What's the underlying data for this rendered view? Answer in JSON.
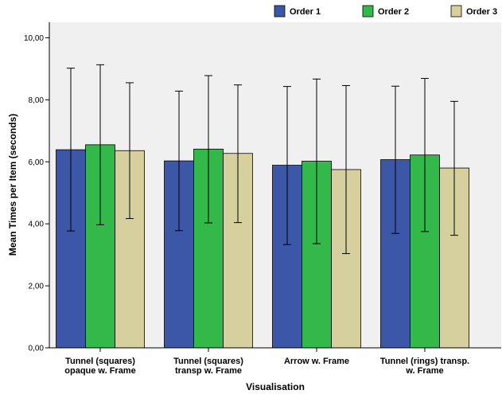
{
  "chart_data": {
    "type": "bar",
    "xlabel": "Visualisation",
    "ylabel": "Mean Times per Item (seconds)",
    "ylim": [
      0,
      10.5
    ],
    "yticks": [
      "0,00",
      "2,00",
      "4,00",
      "6,00",
      "8,00",
      "10,00"
    ],
    "ytick_values": [
      0,
      2,
      4,
      6,
      8,
      10
    ],
    "grid": false,
    "legend_position": "top-right",
    "plot_background": "#f0f0f0",
    "categories": [
      [
        "Tunnel (squares)",
        "opaque w. Frame"
      ],
      [
        "Tunnel (squares)",
        "transp w. Frame"
      ],
      [
        "Arrow w. Frame"
      ],
      [
        "Tunnel (rings) transp.",
        "w. Frame"
      ]
    ],
    "series": [
      {
        "name": "Order 1",
        "color": "#3c57a8",
        "values": [
          6.39,
          6.03,
          5.89,
          6.07
        ],
        "error_low": [
          3.77,
          3.78,
          3.33,
          3.69
        ],
        "error_high": [
          9.02,
          8.28,
          8.43,
          8.44
        ]
      },
      {
        "name": "Order 2",
        "color": "#33b84a",
        "values": [
          6.55,
          6.41,
          6.02,
          6.22
        ],
        "error_low": [
          3.97,
          4.03,
          3.36,
          3.75
        ],
        "error_high": [
          9.13,
          8.78,
          8.67,
          8.69
        ]
      },
      {
        "name": "Order 3",
        "color": "#d6d09f",
        "values": [
          6.36,
          6.27,
          5.75,
          5.8
        ],
        "error_low": [
          4.17,
          4.04,
          3.04,
          3.63
        ],
        "error_high": [
          8.55,
          8.48,
          8.46,
          7.95
        ]
      }
    ]
  }
}
